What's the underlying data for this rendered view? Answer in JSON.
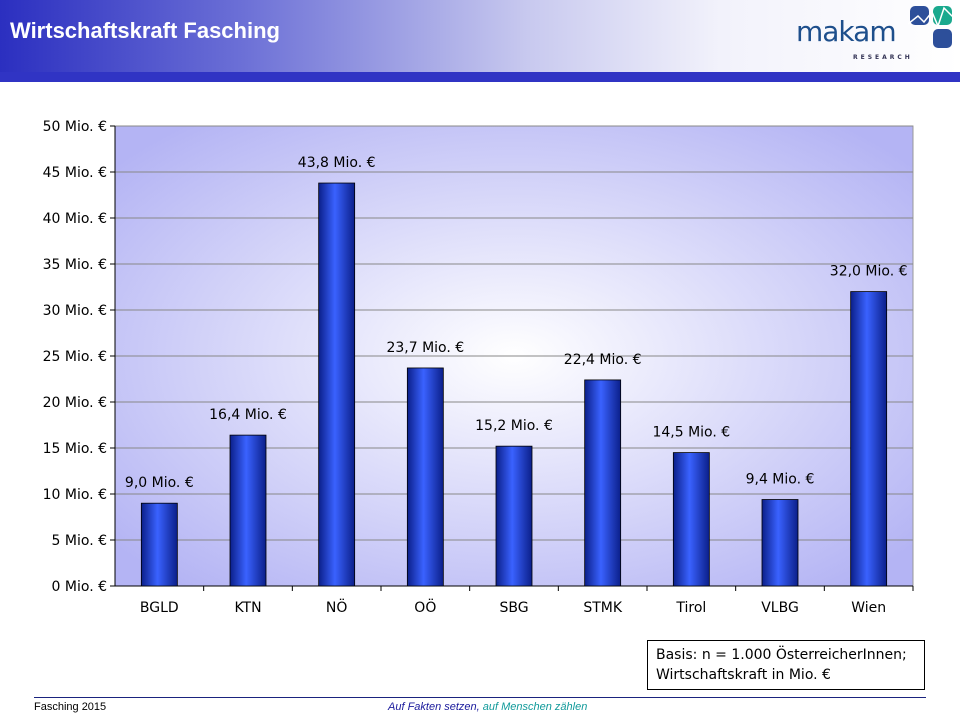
{
  "header": {
    "title": "Wirtschaftskraft Fasching",
    "logo_text": "makam",
    "logo_sub": "RESEARCH"
  },
  "chart_data": {
    "type": "bar",
    "categories": [
      "BGLD",
      "KTN",
      "NÖ",
      "OÖ",
      "SBG",
      "STMK",
      "Tirol",
      "VLBG",
      "Wien"
    ],
    "values": [
      9.0,
      16.4,
      43.8,
      23.7,
      15.2,
      22.4,
      14.5,
      9.4,
      32.0
    ],
    "data_labels": [
      "9,0 Mio. €",
      "16,4 Mio. €",
      "43,8 Mio. €",
      "23,7 Mio. €",
      "15,2 Mio. €",
      "22,4 Mio. €",
      "14,5 Mio. €",
      "9,4 Mio. €",
      "32,0 Mio. €"
    ],
    "ylim": [
      0,
      50
    ],
    "yticks": [
      0,
      5,
      10,
      15,
      20,
      25,
      30,
      35,
      40,
      45,
      50
    ],
    "ytick_labels": [
      "0 Mio. €",
      "5 Mio. €",
      "10 Mio. €",
      "15 Mio. €",
      "20 Mio. €",
      "25 Mio. €",
      "30 Mio. €",
      "35 Mio. €",
      "40 Mio. €",
      "45 Mio. €",
      "50 Mio. €"
    ],
    "grid": true,
    "title": "",
    "xlabel": "",
    "ylabel": "",
    "bar_color": "#2a4fe0"
  },
  "basis": {
    "line1": "Basis: n = 1.000 ÖsterreicherInnen;",
    "line2": "Wirtschaftskraft in Mio. €"
  },
  "footer": {
    "left": "Fasching  2015",
    "right_a": "Auf Fakten setzen,",
    "right_b": " auf Menschen zählen"
  }
}
